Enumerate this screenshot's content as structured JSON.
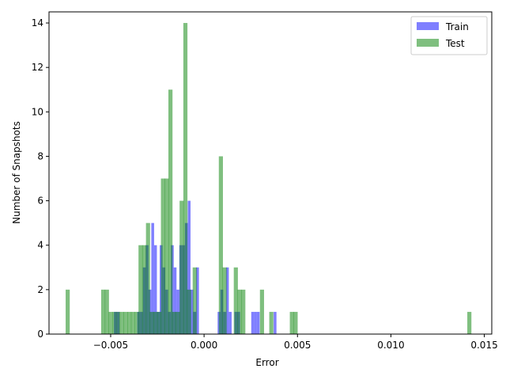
{
  "chart_data": {
    "type": "bar",
    "title": "",
    "xlabel": "Error",
    "ylabel": "Number of Snapshots",
    "xlim": [
      -0.0083,
      0.0154
    ],
    "ylim": [
      0,
      14.5
    ],
    "xticks": [
      -0.005,
      0.0,
      0.005,
      0.01,
      0.015
    ],
    "xtick_labels": [
      "−0.005",
      "0.000",
      "0.005",
      "0.010",
      "0.015"
    ],
    "yticks": [
      0,
      2,
      4,
      6,
      8,
      10,
      12,
      14
    ],
    "ytick_labels": [
      "0",
      "2",
      "4",
      "6",
      "8",
      "10",
      "12",
      "14"
    ],
    "grid": false,
    "legend_position": "top-right",
    "series": [
      {
        "name": "Train",
        "color": "#0000ff",
        "opacity": 0.5,
        "bin_width": 0.00015,
        "bins": [
          [
            -0.00475,
            1
          ],
          [
            -0.0046,
            1
          ],
          [
            -0.0035,
            1
          ],
          [
            -0.00335,
            1
          ],
          [
            -0.0032,
            3
          ],
          [
            -0.00305,
            4
          ],
          [
            -0.0029,
            2
          ],
          [
            -0.00275,
            5
          ],
          [
            -0.0026,
            4
          ],
          [
            -0.00245,
            1
          ],
          [
            -0.0023,
            4
          ],
          [
            -0.00215,
            3
          ],
          [
            -0.002,
            2
          ],
          [
            -0.00185,
            1
          ],
          [
            -0.0017,
            4
          ],
          [
            -0.00155,
            3
          ],
          [
            -0.0014,
            2
          ],
          [
            -0.00125,
            4
          ],
          [
            -0.0011,
            4
          ],
          [
            -0.00095,
            5
          ],
          [
            -0.0008,
            6
          ],
          [
            -0.00065,
            2
          ],
          [
            -0.0005,
            1
          ],
          [
            -0.00035,
            3
          ],
          [
            0.0008,
            1
          ],
          [
            0.00095,
            2
          ],
          [
            0.0011,
            1
          ],
          [
            0.00125,
            3
          ],
          [
            0.0014,
            1
          ],
          [
            0.0017,
            1
          ],
          [
            0.00185,
            1
          ],
          [
            0.0026,
            1
          ],
          [
            0.00275,
            1
          ],
          [
            0.0029,
            1
          ],
          [
            0.0038,
            1
          ]
        ]
      },
      {
        "name": "Test",
        "color": "#008000",
        "opacity": 0.5,
        "bin_width": 0.00022,
        "bins": [
          [
            -0.0073,
            2
          ],
          [
            -0.0054,
            2
          ],
          [
            -0.0052,
            2
          ],
          [
            -0.005,
            1
          ],
          [
            -0.0048,
            1
          ],
          [
            -0.0046,
            1
          ],
          [
            -0.0044,
            1
          ],
          [
            -0.0042,
            1
          ],
          [
            -0.004,
            1
          ],
          [
            -0.0038,
            1
          ],
          [
            -0.0036,
            1
          ],
          [
            -0.0034,
            4
          ],
          [
            -0.0032,
            4
          ],
          [
            -0.003,
            5
          ],
          [
            -0.0028,
            1
          ],
          [
            -0.0026,
            1
          ],
          [
            -0.0024,
            1
          ],
          [
            -0.0022,
            7
          ],
          [
            -0.002,
            7
          ],
          [
            -0.0018,
            11
          ],
          [
            -0.0016,
            1
          ],
          [
            -0.0014,
            1
          ],
          [
            -0.0012,
            6
          ],
          [
            -0.001,
            14
          ],
          [
            -0.0008,
            2
          ],
          [
            -0.0005,
            3
          ],
          [
            0.0009,
            8
          ],
          [
            0.0011,
            3
          ],
          [
            0.0017,
            3
          ],
          [
            0.0019,
            2
          ],
          [
            0.0021,
            2
          ],
          [
            0.0031,
            2
          ],
          [
            0.0036,
            1
          ],
          [
            0.0047,
            1
          ],
          [
            0.0049,
            1
          ],
          [
            0.0142,
            1
          ]
        ]
      }
    ]
  }
}
